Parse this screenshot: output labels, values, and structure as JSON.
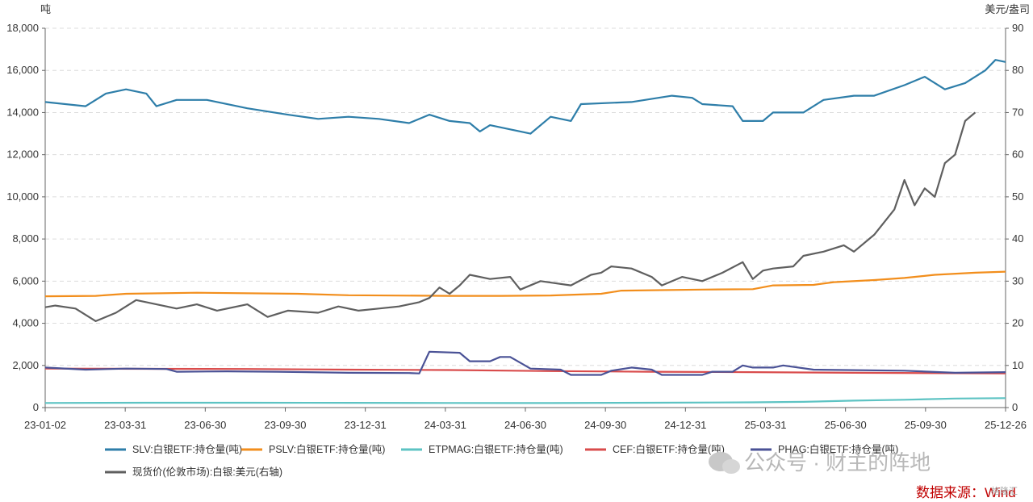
{
  "chart_data": {
    "type": "line",
    "left_axis": {
      "unit": "吨",
      "min": 0,
      "max": 18000,
      "ticks": [
        "0",
        "2,000",
        "4,000",
        "6,000",
        "8,000",
        "10,000",
        "12,000",
        "14,000",
        "16,000",
        "18,000"
      ]
    },
    "right_axis": {
      "unit": "美元/盎司",
      "min": 0,
      "max": 90,
      "ticks": [
        "0",
        "10",
        "20",
        "30",
        "40",
        "50",
        "60",
        "70",
        "80",
        "90"
      ]
    },
    "x_ticks": [
      "23-01-02",
      "23-03-31",
      "23-06-30",
      "23-09-30",
      "23-12-31",
      "24-03-31",
      "24-06-30",
      "24-09-30",
      "24-12-31",
      "25-03-31",
      "25-06-30",
      "25-09-30",
      "25-12-26"
    ],
    "x_range": [
      "23-01-02",
      "25-12-26"
    ],
    "grid": true,
    "legend_position": "bottom-left",
    "series": [
      {
        "name": "SLV:白银ETF:持仓量(吨)",
        "axis": "left",
        "color": "#2e7ea9",
        "points": [
          [
            0,
            14500
          ],
          [
            4,
            14300
          ],
          [
            6,
            14900
          ],
          [
            8,
            15100
          ],
          [
            10,
            14900
          ],
          [
            11,
            14300
          ],
          [
            13,
            14600
          ],
          [
            16,
            14600
          ],
          [
            20,
            14200
          ],
          [
            24,
            13900
          ],
          [
            27,
            13700
          ],
          [
            30,
            13800
          ],
          [
            33,
            13700
          ],
          [
            36,
            13500
          ],
          [
            38,
            13900
          ],
          [
            40,
            13600
          ],
          [
            42,
            13500
          ],
          [
            43,
            13100
          ],
          [
            44,
            13400
          ],
          [
            46,
            13200
          ],
          [
            48,
            13000
          ],
          [
            50,
            13800
          ],
          [
            52,
            13600
          ],
          [
            53,
            14400
          ],
          [
            58,
            14500
          ],
          [
            62,
            14800
          ],
          [
            64,
            14700
          ],
          [
            65,
            14400
          ],
          [
            68,
            14300
          ],
          [
            69,
            13600
          ],
          [
            71,
            13600
          ],
          [
            72,
            14000
          ],
          [
            75,
            14000
          ],
          [
            77,
            14600
          ],
          [
            80,
            14800
          ],
          [
            82,
            14800
          ],
          [
            85,
            15300
          ],
          [
            87,
            15700
          ],
          [
            89,
            15100
          ],
          [
            91,
            15400
          ],
          [
            93,
            16000
          ],
          [
            94,
            16500
          ],
          [
            95,
            16400
          ]
        ]
      },
      {
        "name": "PSLV:白银ETF:持仓量(吨)",
        "axis": "left",
        "color": "#f28e1c",
        "points": [
          [
            0,
            5280
          ],
          [
            5,
            5300
          ],
          [
            8,
            5400
          ],
          [
            15,
            5450
          ],
          [
            25,
            5400
          ],
          [
            30,
            5330
          ],
          [
            40,
            5300
          ],
          [
            45,
            5300
          ],
          [
            50,
            5320
          ],
          [
            55,
            5400
          ],
          [
            57,
            5550
          ],
          [
            65,
            5600
          ],
          [
            70,
            5620
          ],
          [
            72,
            5800
          ],
          [
            76,
            5820
          ],
          [
            78,
            5950
          ],
          [
            82,
            6050
          ],
          [
            85,
            6150
          ],
          [
            88,
            6300
          ],
          [
            92,
            6400
          ],
          [
            95,
            6450
          ]
        ]
      },
      {
        "name": "ETPMAG:白银ETF:持仓量(吨)",
        "axis": "left",
        "color": "#5dc3c3",
        "points": [
          [
            0,
            220
          ],
          [
            10,
            230
          ],
          [
            20,
            230
          ],
          [
            30,
            225
          ],
          [
            40,
            220
          ],
          [
            50,
            215
          ],
          [
            60,
            230
          ],
          [
            70,
            250
          ],
          [
            75,
            270
          ],
          [
            80,
            330
          ],
          [
            85,
            370
          ],
          [
            90,
            430
          ],
          [
            95,
            450
          ]
        ]
      },
      {
        "name": "CEF:白银ETF:持仓量(吨)",
        "axis": "left",
        "color": "#d94c4c",
        "points": [
          [
            0,
            1850
          ],
          [
            10,
            1840
          ],
          [
            20,
            1830
          ],
          [
            30,
            1800
          ],
          [
            40,
            1780
          ],
          [
            50,
            1730
          ],
          [
            60,
            1700
          ],
          [
            70,
            1680
          ],
          [
            80,
            1650
          ],
          [
            90,
            1630
          ],
          [
            95,
            1620
          ]
        ]
      },
      {
        "name": "PHAG:白银ETF:持仓量(吨)",
        "axis": "left",
        "color": "#4a5296",
        "points": [
          [
            0,
            1900
          ],
          [
            4,
            1800
          ],
          [
            8,
            1850
          ],
          [
            12,
            1830
          ],
          [
            13,
            1700
          ],
          [
            18,
            1720
          ],
          [
            23,
            1700
          ],
          [
            30,
            1650
          ],
          [
            36,
            1640
          ],
          [
            37,
            1620
          ],
          [
            38,
            2650
          ],
          [
            41,
            2600
          ],
          [
            42,
            2200
          ],
          [
            44,
            2200
          ],
          [
            45,
            2400
          ],
          [
            46,
            2400
          ],
          [
            48,
            1850
          ],
          [
            51,
            1800
          ],
          [
            52,
            1550
          ],
          [
            55,
            1550
          ],
          [
            56,
            1750
          ],
          [
            58,
            1900
          ],
          [
            60,
            1800
          ],
          [
            61,
            1550
          ],
          [
            65,
            1550
          ],
          [
            66,
            1700
          ],
          [
            68,
            1700
          ],
          [
            69,
            2000
          ],
          [
            70,
            1900
          ],
          [
            72,
            1900
          ],
          [
            73,
            2000
          ],
          [
            76,
            1800
          ],
          [
            85,
            1750
          ],
          [
            90,
            1650
          ],
          [
            95,
            1680
          ]
        ]
      },
      {
        "name": "现货价(伦敦市场):白银:美元(右轴)",
        "axis": "right",
        "color": "#5f5f5f",
        "points": [
          [
            0,
            23.8
          ],
          [
            1,
            24.2
          ],
          [
            3,
            23.5
          ],
          [
            5,
            20.5
          ],
          [
            7,
            22.5
          ],
          [
            9,
            25.5
          ],
          [
            10,
            25
          ],
          [
            12,
            24
          ],
          [
            13,
            23.5
          ],
          [
            15,
            24.5
          ],
          [
            17,
            23
          ],
          [
            20,
            24.5
          ],
          [
            22,
            21.5
          ],
          [
            24,
            23
          ],
          [
            27,
            22.5
          ],
          [
            29,
            24
          ],
          [
            31,
            23
          ],
          [
            33,
            23.5
          ],
          [
            35,
            24
          ],
          [
            37,
            25
          ],
          [
            38,
            26
          ],
          [
            39,
            28.5
          ],
          [
            40,
            27
          ],
          [
            41,
            29
          ],
          [
            42,
            31.5
          ],
          [
            44,
            30.5
          ],
          [
            46,
            31
          ],
          [
            47,
            28
          ],
          [
            49,
            30
          ],
          [
            52,
            29
          ],
          [
            54,
            31.5
          ],
          [
            55,
            32
          ],
          [
            56,
            33.5
          ],
          [
            58,
            33
          ],
          [
            60,
            31
          ],
          [
            61,
            29
          ],
          [
            63,
            31
          ],
          [
            65,
            30
          ],
          [
            67,
            32
          ],
          [
            69,
            34.5
          ],
          [
            70,
            30.5
          ],
          [
            71,
            32.5
          ],
          [
            72,
            33
          ],
          [
            74,
            33.5
          ],
          [
            75,
            36
          ],
          [
            77,
            37
          ],
          [
            79,
            38.5
          ],
          [
            80,
            37
          ],
          [
            82,
            41
          ],
          [
            84,
            47
          ],
          [
            85,
            54
          ],
          [
            86,
            48
          ],
          [
            87,
            52
          ],
          [
            88,
            50
          ],
          [
            89,
            58
          ],
          [
            90,
            60
          ],
          [
            91,
            68
          ],
          [
            92,
            70
          ]
        ]
      }
    ]
  },
  "source_label": "数据来源：Wind",
  "watermark": "公众号 · 财主的阵地",
  "watermark_small": "格隆汇"
}
